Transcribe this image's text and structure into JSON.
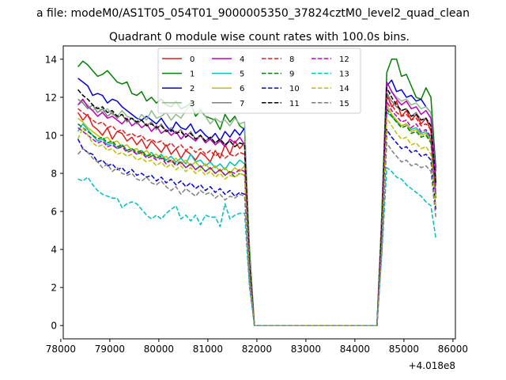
{
  "suptitle": "a file: modeM0/AS1T05_054T01_9000005350_37824cztM0_level2_quad_clean",
  "chart_data": {
    "type": "line",
    "title": "Quadrant 0 module wise count rates with 100.0s bins.",
    "xlabel": "",
    "ylabel": "",
    "offset_text": "+4.018e8",
    "xlim": [
      78050,
      86050
    ],
    "ylim": [
      -0.7,
      14.7
    ],
    "xticks": [
      78000,
      79000,
      80000,
      81000,
      82000,
      83000,
      84000,
      85000,
      86000
    ],
    "yticks": [
      0,
      2,
      4,
      6,
      8,
      10,
      12,
      14
    ],
    "grid": false,
    "legend": {
      "placement": "top-center",
      "ncol": 4
    },
    "x": [
      78350,
      78450,
      78550,
      78650,
      78750,
      78850,
      78950,
      79050,
      79150,
      79250,
      79350,
      79450,
      79550,
      79650,
      79750,
      79850,
      79950,
      80050,
      80150,
      80250,
      80350,
      80450,
      80550,
      80650,
      80750,
      80850,
      80950,
      81050,
      81150,
      81250,
      81350,
      81450,
      81550,
      81650,
      81750,
      81850,
      81950,
      82050,
      84450,
      84550,
      84650,
      84750,
      84850,
      84950,
      85050,
      85150,
      85250,
      85350,
      85450,
      85550,
      85650
    ],
    "series": [
      {
        "name": "0",
        "color": "#e41a1a",
        "dash": "solid",
        "values": [
          11.2,
          10.8,
          11.1,
          10.5,
          10.3,
          10.0,
          10.4,
          9.8,
          10.2,
          10.1,
          9.7,
          9.9,
          9.5,
          9.8,
          9.3,
          9.7,
          9.4,
          9.1,
          9.5,
          9.0,
          9.3,
          8.8,
          9.2,
          9.0,
          8.7,
          9.1,
          8.9,
          8.6,
          9.2,
          8.8,
          9.5,
          9.0,
          9.7,
          9.3,
          9.6,
          3.0,
          0.0,
          0.0,
          0.0,
          5.0,
          12.2,
          11.5,
          11.8,
          11.0,
          11.3,
          10.8,
          11.1,
          10.6,
          10.9,
          10.2,
          7.5
        ]
      },
      {
        "name": "1",
        "color": "#008000",
        "dash": "solid",
        "values": [
          13.6,
          13.9,
          13.7,
          13.4,
          13.1,
          13.2,
          13.4,
          13.1,
          12.8,
          12.7,
          12.8,
          12.2,
          12.1,
          12.3,
          11.8,
          12.0,
          11.7,
          11.9,
          11.6,
          11.5,
          11.8,
          11.4,
          11.5,
          11.7,
          11.0,
          11.3,
          11.0,
          10.9,
          10.8,
          10.3,
          11.1,
          10.7,
          11.0,
          10.5,
          10.3,
          4.0,
          0.0,
          0.0,
          0.0,
          6.0,
          13.3,
          14.0,
          14.0,
          13.1,
          13.2,
          12.6,
          12.0,
          11.9,
          12.5,
          12.0,
          8.3
        ]
      },
      {
        "name": "2",
        "color": "#0000e0",
        "dash": "solid",
        "values": [
          13.0,
          12.8,
          12.6,
          12.1,
          12.2,
          12.1,
          11.7,
          11.9,
          11.8,
          11.5,
          11.3,
          11.1,
          10.9,
          10.8,
          11.0,
          10.8,
          10.6,
          10.9,
          10.5,
          10.2,
          10.7,
          10.4,
          10.3,
          10.6,
          10.1,
          10.3,
          10.0,
          9.8,
          10.1,
          9.7,
          10.2,
          9.9,
          10.3,
          10.0,
          10.4,
          3.5,
          0.0,
          0.0,
          0.0,
          5.5,
          12.6,
          12.9,
          12.3,
          12.4,
          12.0,
          12.1,
          11.8,
          11.9,
          11.5,
          11.2,
          8.1
        ]
      },
      {
        "name": "3",
        "color": "#8fbc8f",
        "dash": "solid",
        "values": [
          11.6,
          11.8,
          11.6,
          11.3,
          11.5,
          11.2,
          11.4,
          11.1,
          11.0,
          11.3,
          11.0,
          10.9,
          10.7,
          11.1,
          10.8,
          11.3,
          10.9,
          11.0,
          11.2,
          10.8,
          11.1,
          10.9,
          11.3,
          11.6,
          11.2,
          11.4,
          11.0,
          10.6,
          10.9,
          10.7,
          10.8,
          10.5,
          10.9,
          10.6,
          10.7,
          3.6,
          0.0,
          0.0,
          0.0,
          5.6,
          12.0,
          12.3,
          12.0,
          11.8,
          11.9,
          11.6,
          11.7,
          11.4,
          11.5,
          11.2,
          7.8
        ]
      },
      {
        "name": "4",
        "color": "#bf00bf",
        "dash": "solid",
        "values": [
          11.6,
          11.9,
          11.5,
          11.3,
          11.0,
          11.2,
          10.9,
          11.0,
          10.8,
          10.6,
          10.9,
          10.5,
          10.7,
          10.4,
          10.6,
          10.2,
          10.5,
          10.1,
          10.3,
          10.0,
          10.2,
          9.8,
          10.1,
          9.9,
          9.7,
          10.0,
          9.6,
          9.8,
          9.5,
          9.7,
          9.4,
          9.8,
          9.6,
          9.9,
          9.5,
          3.2,
          0.0,
          0.0,
          0.0,
          5.2,
          12.8,
          12.3,
          11.9,
          11.6,
          11.8,
          11.4,
          11.5,
          11.1,
          11.3,
          10.9,
          7.7
        ]
      },
      {
        "name": "5",
        "color": "#00bfbf",
        "dash": "solid",
        "values": [
          10.2,
          10.6,
          10.3,
          10.0,
          9.7,
          9.8,
          9.5,
          9.6,
          9.3,
          9.5,
          9.2,
          9.3,
          9.0,
          9.2,
          8.9,
          9.1,
          8.8,
          9.0,
          8.7,
          8.9,
          8.6,
          8.8,
          8.5,
          9.0,
          8.6,
          8.7,
          8.4,
          8.6,
          8.3,
          8.5,
          8.2,
          8.6,
          8.4,
          8.7,
          8.5,
          2.8,
          0.0,
          0.0,
          0.0,
          4.6,
          11.2,
          11.0,
          10.7,
          10.5,
          10.6,
          10.3,
          10.4,
          10.1,
          10.2,
          9.8,
          6.9
        ]
      },
      {
        "name": "6",
        "color": "#bfbf00",
        "dash": "solid",
        "values": [
          10.9,
          10.7,
          10.4,
          10.2,
          10.0,
          9.8,
          9.9,
          9.6,
          9.7,
          9.4,
          9.5,
          9.2,
          9.3,
          9.0,
          9.2,
          8.9,
          9.0,
          8.8,
          8.9,
          8.6,
          8.8,
          8.5,
          8.7,
          8.4,
          8.6,
          8.3,
          8.5,
          8.2,
          8.4,
          8.1,
          8.3,
          8.0,
          8.3,
          8.1,
          8.4,
          2.7,
          0.0,
          0.0,
          0.0,
          4.5,
          11.6,
          11.1,
          10.8,
          10.5,
          10.6,
          10.2,
          10.3,
          10.0,
          10.1,
          9.7,
          6.8
        ]
      },
      {
        "name": "7",
        "color": "#7f7f7f",
        "dash": "solid",
        "values": [
          11.9,
          11.7,
          11.4,
          11.6,
          11.2,
          11.4,
          11.0,
          11.2,
          10.9,
          11.1,
          10.7,
          10.9,
          10.6,
          10.8,
          10.5,
          10.7,
          10.3,
          10.6,
          10.2,
          10.4,
          10.1,
          10.3,
          9.9,
          10.2,
          9.8,
          10.0,
          9.7,
          9.9,
          9.6,
          9.8,
          9.5,
          9.7,
          9.4,
          9.6,
          9.5,
          3.1,
          0.0,
          0.0,
          0.0,
          5.1,
          12.2,
          11.8,
          11.5,
          11.3,
          11.4,
          11.0,
          11.2,
          10.8,
          10.9,
          10.5,
          7.4
        ]
      },
      {
        "name": "8",
        "color": "#e41a1a",
        "dash": "dashed",
        "values": [
          11.4,
          11.2,
          11.0,
          10.8,
          10.6,
          10.7,
          10.4,
          10.5,
          10.2,
          10.3,
          10.0,
          10.1,
          9.9,
          10.0,
          9.7,
          9.8,
          9.6,
          9.7,
          9.4,
          9.6,
          9.3,
          9.5,
          9.2,
          9.4,
          9.1,
          9.3,
          9.0,
          9.2,
          8.9,
          9.1,
          8.8,
          9.0,
          8.9,
          9.1,
          9.0,
          2.9,
          0.0,
          0.0,
          0.0,
          4.9,
          12.0,
          11.6,
          11.2,
          11.0,
          11.1,
          10.8,
          10.9,
          10.5,
          10.6,
          10.3,
          7.2
        ]
      },
      {
        "name": "9",
        "color": "#008000",
        "dash": "dashed",
        "values": [
          10.6,
          10.4,
          10.2,
          10.0,
          9.8,
          9.9,
          9.6,
          9.7,
          9.4,
          9.5,
          9.2,
          9.3,
          9.1,
          9.2,
          8.9,
          9.0,
          8.8,
          8.9,
          8.6,
          8.7,
          8.5,
          8.6,
          8.3,
          8.5,
          8.2,
          8.4,
          8.1,
          8.3,
          8.0,
          8.2,
          7.9,
          8.1,
          7.8,
          8.0,
          7.9,
          2.6,
          0.0,
          0.0,
          0.0,
          4.4,
          11.4,
          11.0,
          10.7,
          10.4,
          10.5,
          10.1,
          10.2,
          9.9,
          10.0,
          9.6,
          6.7
        ]
      },
      {
        "name": "10",
        "color": "#0000e0",
        "dash": "dashed",
        "values": [
          9.8,
          9.3,
          9.1,
          9.0,
          8.6,
          8.7,
          8.4,
          8.5,
          8.2,
          8.3,
          8.0,
          8.2,
          7.9,
          8.0,
          7.8,
          7.9,
          7.6,
          7.8,
          7.5,
          7.7,
          7.4,
          7.6,
          7.3,
          7.5,
          7.2,
          7.4,
          7.1,
          7.3,
          7.0,
          7.2,
          6.9,
          7.1,
          6.8,
          7.0,
          6.9,
          2.3,
          0.0,
          0.0,
          0.0,
          4.0,
          10.3,
          9.9,
          9.6,
          9.3,
          9.4,
          9.1,
          9.2,
          8.9,
          9.0,
          8.7,
          6.1
        ]
      },
      {
        "name": "11",
        "color": "#000000",
        "dash": "dashed",
        "values": [
          12.4,
          12.1,
          11.9,
          11.6,
          11.4,
          11.5,
          11.2,
          11.3,
          11.0,
          11.1,
          10.8,
          10.9,
          10.7,
          10.8,
          10.5,
          10.6,
          10.4,
          10.5,
          10.2,
          10.3,
          10.1,
          10.2,
          9.9,
          10.1,
          9.8,
          10.0,
          9.7,
          9.9,
          9.6,
          9.8,
          9.5,
          9.7,
          9.4,
          9.6,
          9.5,
          3.2,
          0.0,
          0.0,
          0.0,
          5.3,
          12.5,
          12.0,
          11.6,
          11.3,
          11.4,
          11.0,
          11.1,
          10.8,
          10.9,
          10.5,
          7.5
        ]
      },
      {
        "name": "12",
        "color": "#bf00bf",
        "dash": "dashed",
        "values": [
          10.4,
          10.2,
          10.0,
          9.8,
          9.6,
          9.7,
          9.4,
          9.5,
          9.3,
          9.4,
          9.1,
          9.2,
          9.0,
          9.1,
          8.8,
          8.9,
          8.7,
          8.8,
          8.5,
          8.7,
          8.4,
          8.6,
          8.3,
          8.5,
          8.2,
          8.4,
          8.1,
          8.3,
          8.0,
          8.2,
          7.9,
          8.1,
          8.0,
          8.2,
          8.1,
          2.7,
          0.0,
          0.0,
          0.0,
          4.6,
          11.8,
          11.3,
          11.0,
          10.7,
          10.8,
          10.4,
          10.6,
          10.2,
          10.3,
          9.9,
          6.9
        ]
      },
      {
        "name": "13",
        "color": "#00bfbf",
        "dash": "dashed",
        "values": [
          7.7,
          7.6,
          7.8,
          7.4,
          7.1,
          6.9,
          6.8,
          6.7,
          6.7,
          6.2,
          6.4,
          6.5,
          6.4,
          6.1,
          5.8,
          5.6,
          5.8,
          5.6,
          5.9,
          6.1,
          6.3,
          5.6,
          5.8,
          5.5,
          5.8,
          5.3,
          5.8,
          5.7,
          5.7,
          5.2,
          6.4,
          5.6,
          5.8,
          5.9,
          5.9,
          2.0,
          0.0,
          0.0,
          0.0,
          3.8,
          8.3,
          8.1,
          7.8,
          7.7,
          7.4,
          7.2,
          7.0,
          6.8,
          6.5,
          6.3,
          4.6
        ]
      },
      {
        "name": "14",
        "color": "#bfbf00",
        "dash": "dashed",
        "values": [
          9.8,
          10.4,
          10.0,
          9.6,
          9.4,
          9.5,
          9.2,
          9.3,
          9.0,
          9.1,
          8.9,
          9.0,
          8.7,
          8.8,
          8.6,
          8.7,
          8.4,
          8.6,
          8.3,
          8.5,
          8.2,
          8.4,
          8.1,
          8.3,
          8.0,
          8.2,
          7.9,
          8.1,
          7.8,
          8.0,
          7.7,
          7.9,
          7.8,
          8.0,
          7.9,
          2.6,
          0.0,
          0.0,
          0.0,
          4.3,
          10.9,
          10.5,
          10.1,
          9.8,
          9.9,
          9.5,
          9.6,
          9.3,
          9.4,
          9.0,
          6.3
        ]
      },
      {
        "name": "15",
        "color": "#7f7f7f",
        "dash": "dashed",
        "values": [
          9.0,
          9.3,
          9.1,
          8.8,
          8.6,
          8.3,
          8.5,
          8.1,
          8.3,
          8.0,
          7.9,
          8.0,
          7.7,
          7.6,
          7.8,
          7.5,
          7.4,
          7.6,
          7.3,
          7.1,
          7.3,
          6.9,
          7.2,
          7.0,
          6.8,
          7.1,
          6.9,
          7.0,
          6.7,
          6.9,
          6.6,
          6.8,
          6.7,
          6.9,
          6.8,
          2.3,
          0.0,
          0.0,
          0.0,
          4.0,
          9.6,
          9.2,
          8.9,
          8.6,
          8.7,
          8.4,
          8.5,
          8.3,
          8.4,
          8.1,
          5.7
        ]
      }
    ]
  }
}
